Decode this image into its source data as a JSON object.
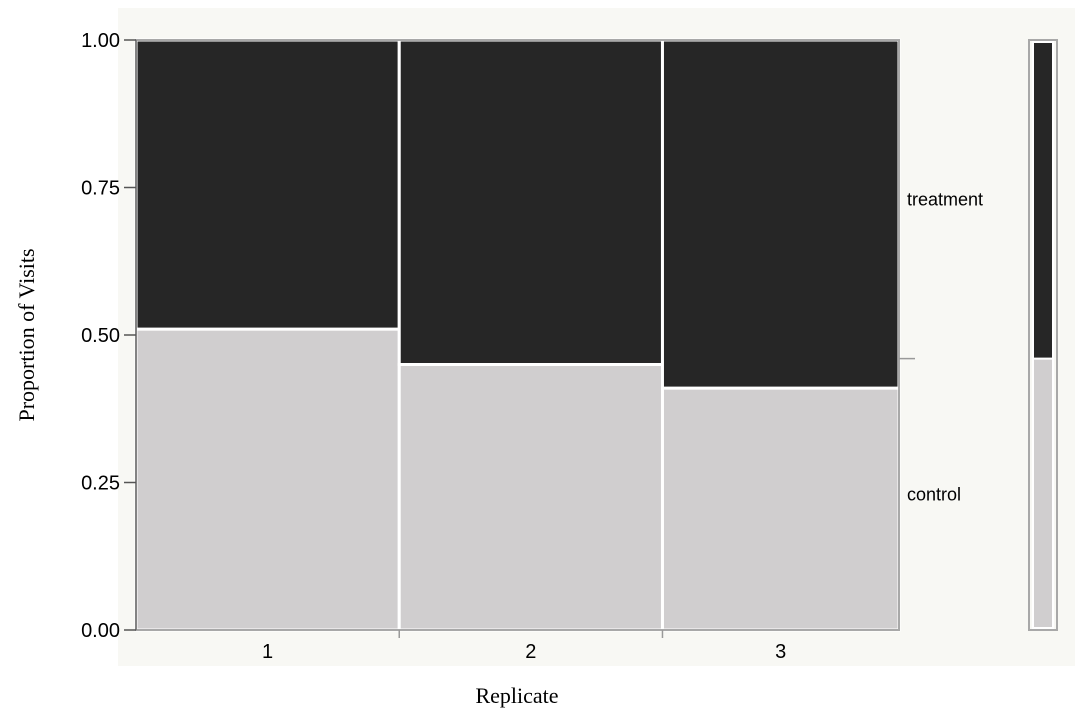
{
  "chart_data": {
    "type": "mosaic",
    "xlabel": "Replicate",
    "ylabel": "Proportion of Visits",
    "ylim": [
      0,
      1
    ],
    "y_ticks": [
      "0.00",
      "0.25",
      "0.50",
      "0.75",
      "1.00"
    ],
    "categories": [
      "1",
      "2",
      "3"
    ],
    "category_shares": [
      0.345,
      0.345,
      0.31
    ],
    "series": [
      {
        "name": "control",
        "values": [
          0.51,
          0.45,
          0.41
        ]
      },
      {
        "name": "treatment",
        "values": [
          0.49,
          0.55,
          0.59
        ]
      }
    ],
    "overall": {
      "control": 0.46,
      "treatment": 0.54
    },
    "grid": false,
    "legend": "right"
  },
  "colors": {
    "control": "#d0cecf",
    "treatment": "#262626",
    "background": "#f8f8f4",
    "frame": "#a8a8a8",
    "separator": "#ffffff"
  }
}
